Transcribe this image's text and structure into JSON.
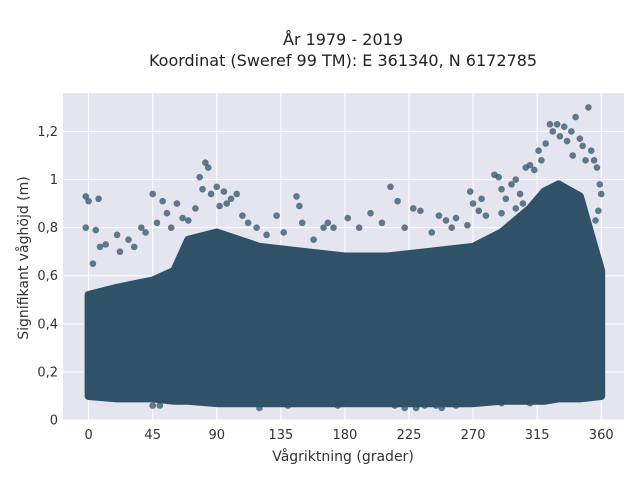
{
  "chart_data": {
    "type": "scatter",
    "title_lines": [
      "År 1979 - 2019",
      "Koordinat (Sweref 99 TM): E 361340, N 6172785"
    ],
    "xlabel": "Vågriktning (grader)",
    "ylabel": "Signifikant våghöjd (m)",
    "xlim": [
      -18,
      376
    ],
    "ylim": [
      0,
      1.36
    ],
    "x_ticks": [
      0,
      45,
      90,
      135,
      180,
      225,
      270,
      315,
      360
    ],
    "x_tick_labels": [
      "0",
      "45",
      "90",
      "135",
      "180",
      "225",
      "270",
      "315",
      "360"
    ],
    "y_ticks": [
      0,
      0.2,
      0.4,
      0.6,
      0.8,
      1.0,
      1.2
    ],
    "y_tick_labels": [
      "0",
      "0,2",
      "0,4",
      "0,6",
      "0,8",
      "1",
      "1,2"
    ],
    "grid": true,
    "marker_color": "#2f5269",
    "background_color": "#e5e5ef",
    "density_band": {
      "x": [
        0,
        20,
        45,
        60,
        70,
        90,
        120,
        150,
        180,
        210,
        240,
        270,
        290,
        310,
        320,
        330,
        345,
        360
      ],
      "y_low": [
        0.1,
        0.09,
        0.09,
        0.08,
        0.08,
        0.07,
        0.07,
        0.07,
        0.07,
        0.07,
        0.07,
        0.07,
        0.08,
        0.08,
        0.08,
        0.09,
        0.09,
        0.1
      ],
      "y_high": [
        0.52,
        0.55,
        0.58,
        0.62,
        0.75,
        0.78,
        0.72,
        0.7,
        0.68,
        0.68,
        0.7,
        0.72,
        0.78,
        0.88,
        0.95,
        0.98,
        0.93,
        0.62
      ]
    },
    "series": [
      {
        "points": [
          [
            -2,
            0.93
          ],
          [
            0,
            0.91
          ],
          [
            -2,
            0.8
          ],
          [
            7,
            0.92
          ],
          [
            5,
            0.79
          ],
          [
            8,
            0.72
          ],
          [
            3,
            0.65
          ],
          [
            12,
            0.73
          ],
          [
            20,
            0.77
          ],
          [
            22,
            0.7
          ],
          [
            28,
            0.75
          ],
          [
            32,
            0.72
          ],
          [
            37,
            0.8
          ],
          [
            40,
            0.78
          ],
          [
            45,
            0.94
          ],
          [
            48,
            0.82
          ],
          [
            52,
            0.91
          ],
          [
            55,
            0.86
          ],
          [
            58,
            0.8
          ],
          [
            62,
            0.9
          ],
          [
            66,
            0.84
          ],
          [
            70,
            0.83
          ],
          [
            75,
            0.88
          ],
          [
            78,
            1.01
          ],
          [
            80,
            0.96
          ],
          [
            82,
            1.07
          ],
          [
            84,
            1.05
          ],
          [
            86,
            0.94
          ],
          [
            90,
            0.97
          ],
          [
            92,
            0.89
          ],
          [
            95,
            0.95
          ],
          [
            97,
            0.9
          ],
          [
            100,
            0.92
          ],
          [
            104,
            0.94
          ],
          [
            108,
            0.85
          ],
          [
            112,
            0.82
          ],
          [
            118,
            0.8
          ],
          [
            125,
            0.77
          ],
          [
            132,
            0.85
          ],
          [
            137,
            0.78
          ],
          [
            146,
            0.93
          ],
          [
            148,
            0.89
          ],
          [
            150,
            0.82
          ],
          [
            158,
            0.75
          ],
          [
            165,
            0.8
          ],
          [
            168,
            0.82
          ],
          [
            172,
            0.8
          ],
          [
            182,
            0.84
          ],
          [
            190,
            0.8
          ],
          [
            198,
            0.86
          ],
          [
            206,
            0.82
          ],
          [
            212,
            0.97
          ],
          [
            217,
            0.91
          ],
          [
            222,
            0.8
          ],
          [
            228,
            0.88
          ],
          [
            233,
            0.87
          ],
          [
            241,
            0.78
          ],
          [
            246,
            0.85
          ],
          [
            251,
            0.83
          ],
          [
            255,
            0.8
          ],
          [
            258,
            0.84
          ],
          [
            266,
            0.81
          ],
          [
            268,
            0.95
          ],
          [
            270,
            0.9
          ],
          [
            274,
            0.87
          ],
          [
            276,
            0.92
          ],
          [
            279,
            0.85
          ],
          [
            285,
            1.02
          ],
          [
            288,
            1.01
          ],
          [
            290,
            0.96
          ],
          [
            293,
            0.92
          ],
          [
            297,
            0.98
          ],
          [
            300,
            1.0
          ],
          [
            303,
            0.94
          ],
          [
            307,
            1.05
          ],
          [
            310,
            1.06
          ],
          [
            313,
            1.04
          ],
          [
            316,
            1.12
          ],
          [
            318,
            1.08
          ],
          [
            321,
            1.15
          ],
          [
            324,
            1.23
          ],
          [
            326,
            1.2
          ],
          [
            329,
            1.23
          ],
          [
            331,
            1.18
          ],
          [
            334,
            1.22
          ],
          [
            336,
            1.16
          ],
          [
            339,
            1.2
          ],
          [
            342,
            1.26
          ],
          [
            345,
            1.17
          ],
          [
            347,
            1.14
          ],
          [
            349,
            1.08
          ],
          [
            351,
            1.3
          ],
          [
            353,
            1.12
          ],
          [
            355,
            1.08
          ],
          [
            357,
            1.05
          ],
          [
            359,
            0.98
          ],
          [
            360,
            0.94
          ],
          [
            358,
            0.87
          ],
          [
            356,
            0.83
          ],
          [
            290,
            0.86
          ],
          [
            305,
            0.9
          ],
          [
            340,
            1.1
          ],
          [
            300,
            0.88
          ],
          [
            230,
            0.05
          ],
          [
            236,
            0.06
          ],
          [
            244,
            0.06
          ],
          [
            248,
            0.05
          ],
          [
            252,
            0.07
          ],
          [
            258,
            0.06
          ],
          [
            215,
            0.06
          ],
          [
            222,
            0.05
          ],
          [
            45,
            0.06
          ],
          [
            50,
            0.06
          ],
          [
            120,
            0.05
          ],
          [
            140,
            0.06
          ],
          [
            175,
            0.06
          ],
          [
            290,
            0.07
          ],
          [
            310,
            0.07
          ]
        ]
      }
    ]
  }
}
